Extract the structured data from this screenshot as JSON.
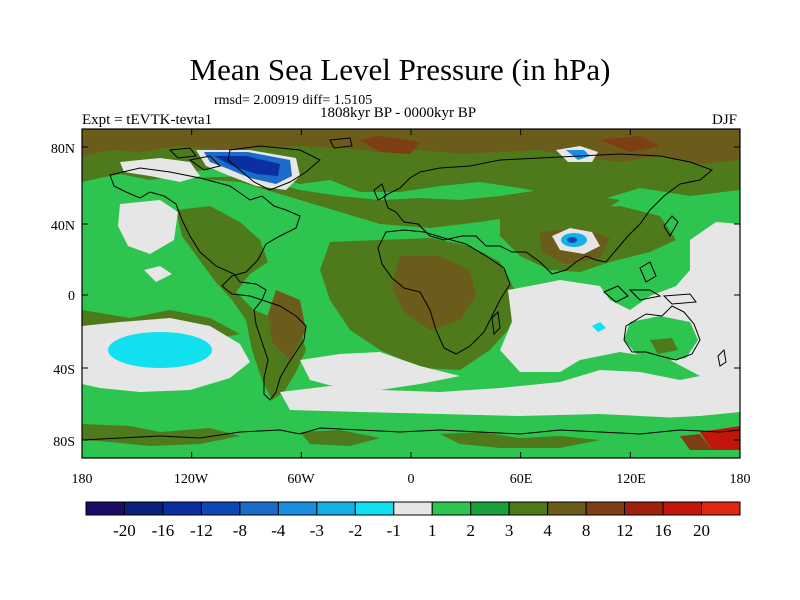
{
  "map": {
    "title": "Mean Sea Level Pressure (in hPa)",
    "stats": "rmsd= 2.00919 diff= 1.5105",
    "period": "1808kyr BP - 0000kyr BP",
    "experiment": "Expt = tEVTK-tevta1",
    "season": "DJF",
    "lon_ticks": [
      "180",
      "120W",
      "60W",
      "0",
      "60E",
      "120E",
      "180"
    ],
    "lat_ticks": [
      "80N",
      "40N",
      "0",
      "40S",
      "80S"
    ],
    "projection": "cylindrical equidistant",
    "lon_range": [
      -180,
      180
    ],
    "lat_range": [
      -90,
      90
    ]
  },
  "colorbar": {
    "colors": [
      "#1a0c64",
      "#0b1f7c",
      "#0a2fa0",
      "#0d48b8",
      "#1a6cc8",
      "#1a8ee0",
      "#14b0e8",
      "#10e0f0",
      "#e6e6e6",
      "#2dc450",
      "#1aa03a",
      "#4e7a1c",
      "#6b5c1c",
      "#7e3e14",
      "#a0200c",
      "#c0160c",
      "#e02810"
    ],
    "labels": [
      "-20",
      "-16",
      "-12",
      "-8",
      "-4",
      "-3",
      "-2",
      "-1",
      "1",
      "2",
      "3",
      "4",
      "8",
      "12",
      "16",
      "20"
    ]
  }
}
